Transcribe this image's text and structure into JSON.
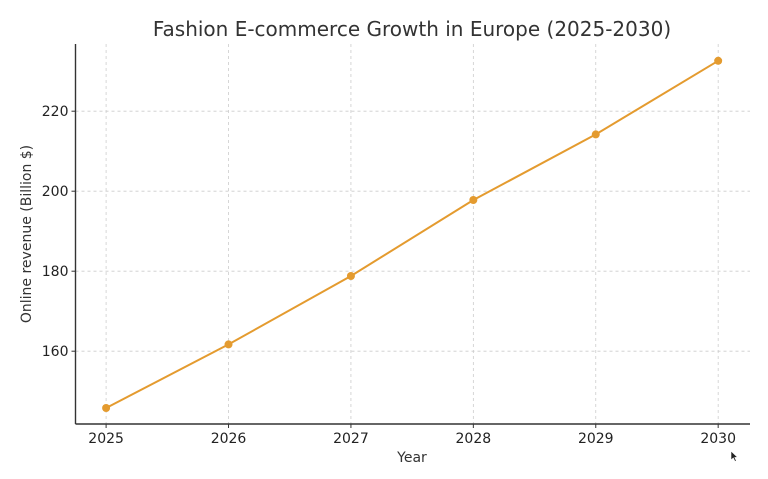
{
  "chart_data": {
    "type": "line",
    "title": "Fashion E-commerce Growth in Europe (2025-2030)",
    "xlabel": "Year",
    "ylabel": "Online revenue (Billion $)",
    "categories": [
      "2025",
      "2026",
      "2027",
      "2028",
      "2029",
      "2030"
    ],
    "x": [
      2025,
      2026,
      2027,
      2028,
      2029,
      2030
    ],
    "series": [
      {
        "name": "Online revenue",
        "values": [
          145.8,
          161.7,
          178.8,
          197.8,
          214.2,
          232.6
        ],
        "color": "#e49b2f",
        "marker": "circle"
      }
    ],
    "xticks": [
      "2025",
      "2026",
      "2027",
      "2028",
      "2029",
      "2030"
    ],
    "yticks": [
      "160",
      "180",
      "200",
      "220"
    ],
    "xlim": [
      2024.75,
      2030.26
    ],
    "ylim": [
      141.8,
      236.8
    ],
    "grid": true,
    "legend": null
  }
}
